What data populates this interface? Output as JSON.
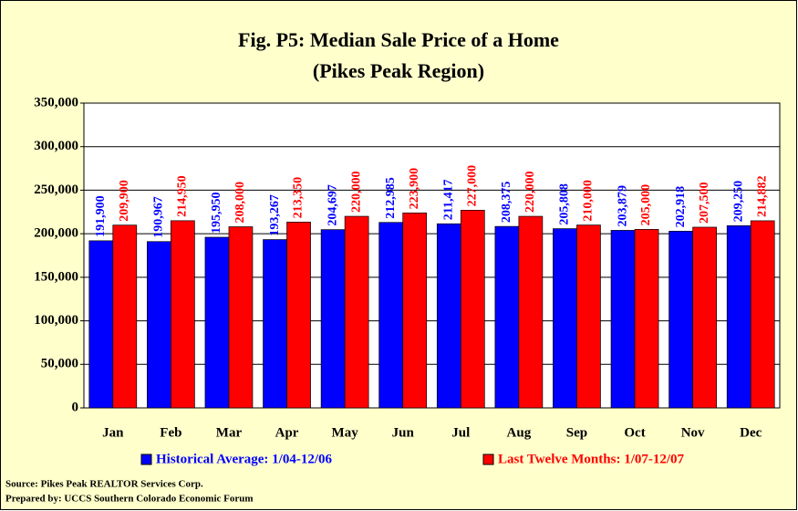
{
  "chart_data": {
    "type": "bar",
    "title": "Fig. P5: Median Sale Price of a Home",
    "subtitle": "(Pikes Peak Region)",
    "categories": [
      "Jan",
      "Feb",
      "Mar",
      "Apr",
      "May",
      "Jun",
      "Jul",
      "Aug",
      "Sep",
      "Oct",
      "Nov",
      "Dec"
    ],
    "series": [
      {
        "name": "Historical Average: 1/04-12/06",
        "color": "#0000ff",
        "values": [
          191900,
          190967,
          195950,
          193267,
          204697,
          212985,
          211417,
          208375,
          205808,
          203879,
          202918,
          209250
        ],
        "value_labels": [
          "191,900",
          "190,967",
          "195,950",
          "193,267",
          "204,697",
          "212,985",
          "211,417",
          "208,375",
          "205,808",
          "203,879",
          "202,918",
          "209,250"
        ]
      },
      {
        "name": "Last Twelve Months: 1/07-12/07",
        "color": "#ff0000",
        "values": [
          209900,
          214950,
          208000,
          213350,
          220000,
          223900,
          227000,
          220000,
          210000,
          205000,
          207500,
          214882
        ],
        "value_labels": [
          "209,900",
          "214,950",
          "208,000",
          "213,350",
          "220,000",
          "223,900",
          "227,000",
          "220,000",
          "210,000",
          "205,000",
          "207,500",
          "214,882"
        ]
      }
    ],
    "ylim": [
      0,
      350000
    ],
    "yticks": [
      0,
      {
        "value": 50000,
        "label": "50,000"
      },
      {
        "value": 100000,
        "label": "100,000"
      },
      {
        "value": 150000,
        "label": "150,000"
      },
      {
        "value": 200000,
        "label": "200,000"
      },
      {
        "value": 250000,
        "label": "250,000"
      },
      {
        "value": 300000,
        "label": "300,000"
      },
      {
        "value": 350000,
        "label": "350,000"
      }
    ],
    "grid": true,
    "legend": "bottom",
    "source": "Source: Pikes Peak REALTOR Services Corp.",
    "prepared_by": "Prepared by: UCCS Southern Colorado Economic Forum"
  }
}
